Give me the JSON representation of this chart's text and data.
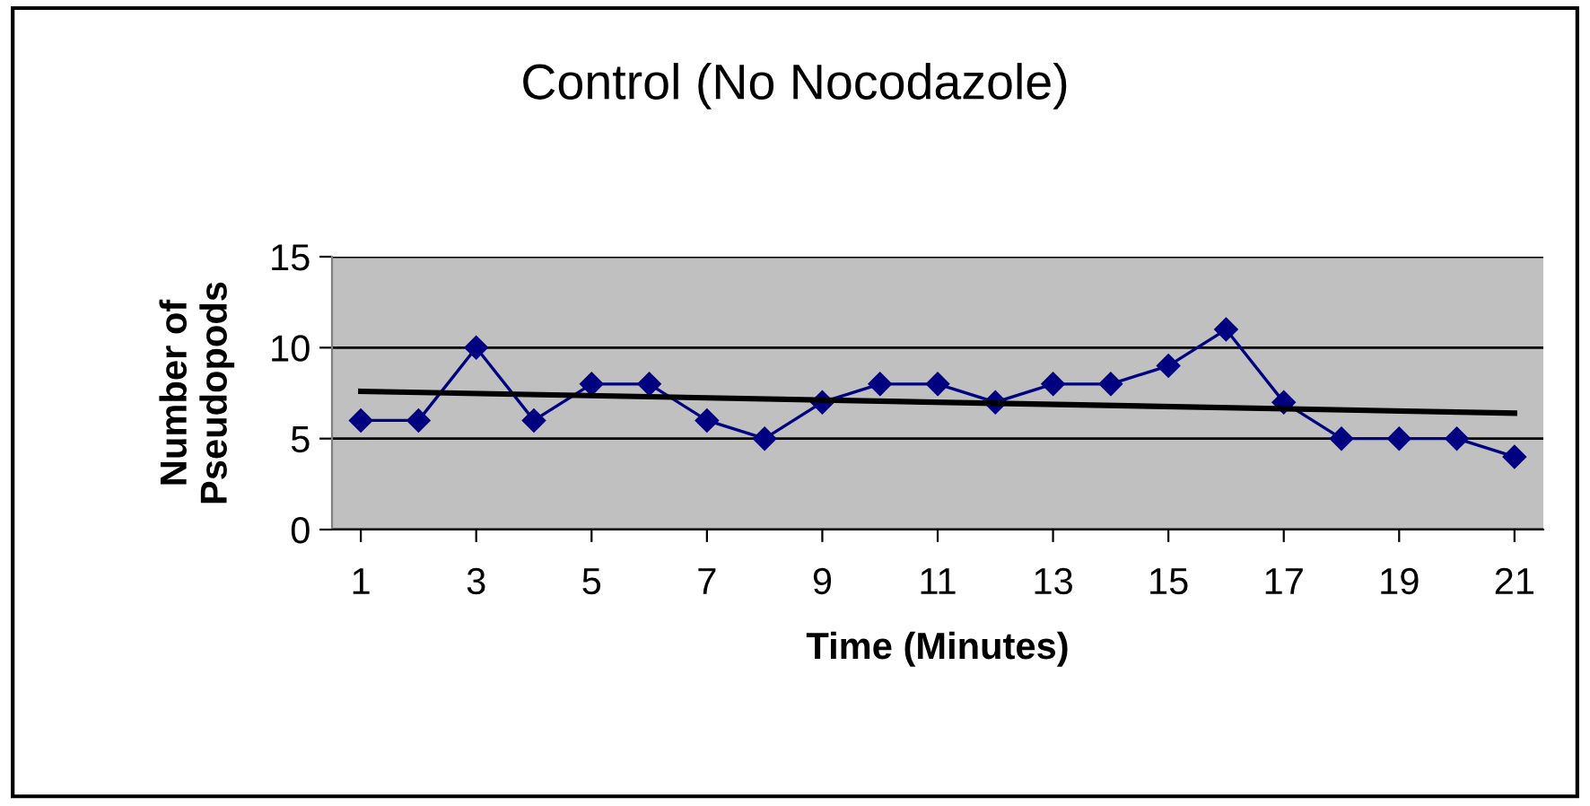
{
  "chart_data": {
    "type": "line",
    "title": "Control (No Nocodazole)",
    "xlabel": "Time (Minutes)",
    "ylabel": "Number of\nPseudopods",
    "x": [
      1,
      2,
      3,
      4,
      5,
      6,
      7,
      8,
      9,
      10,
      11,
      12,
      13,
      14,
      15,
      16,
      17,
      18,
      19,
      20,
      21
    ],
    "series": [
      {
        "color": "#000080",
        "marker": "diamond",
        "values": [
          6,
          6,
          10,
          6,
          8,
          8,
          6,
          5,
          7,
          8,
          8,
          7,
          8,
          8,
          9,
          11,
          7,
          5,
          5,
          5,
          4
        ]
      },
      {
        "type": "line",
        "color": "#000000",
        "marker": "none",
        "x": [
          1,
          21
        ],
        "values": [
          7.6,
          6.4
        ]
      }
    ],
    "xlim": [
      0.5,
      21.5
    ],
    "xticks": [
      1,
      3,
      5,
      7,
      9,
      11,
      13,
      15,
      17,
      19,
      21
    ],
    "ylim": [
      0,
      15
    ],
    "yticks": [
      0,
      5,
      10,
      15
    ],
    "grid": "y",
    "legend": false,
    "line_style": "solid"
  }
}
